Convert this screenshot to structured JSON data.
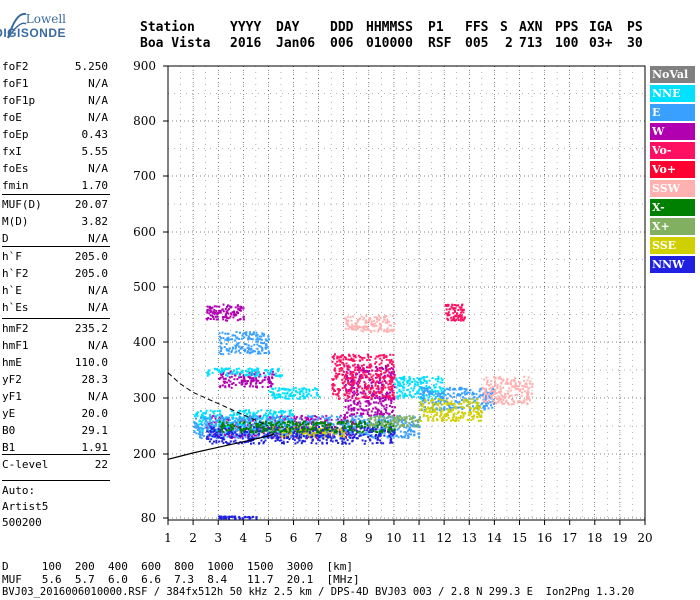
{
  "logo": {
    "line1": "Lowell",
    "line2": "DIGISONDE"
  },
  "header": {
    "row1": [
      "Station",
      "YYYY",
      "DAY",
      "DDD",
      "HHMMSS",
      "P1",
      "FFS",
      "S",
      "AXN",
      "PPS",
      "IGA",
      "PS"
    ],
    "row2": [
      "Boa Vista",
      "2016",
      "Jan06",
      "006",
      "010000",
      "RSF",
      "005",
      "2",
      "713",
      "100",
      "03+",
      "30"
    ]
  },
  "params": [
    {
      "label": "foF2",
      "value": "5.250"
    },
    {
      "label": "foF1",
      "value": "N/A"
    },
    {
      "label": "foF1p",
      "value": "N/A"
    },
    {
      "label": "foE",
      "value": "N/A"
    },
    {
      "label": "foEp",
      "value": "0.43"
    },
    {
      "label": "fxI",
      "value": "5.55"
    },
    {
      "label": "foEs",
      "value": "N/A"
    },
    {
      "label": "fmin",
      "value": "1.70"
    },
    {
      "label": "MUF(D)",
      "value": "20.07"
    },
    {
      "label": "M(D)",
      "value": "3.82"
    },
    {
      "label": "D",
      "value": "N/A"
    },
    {
      "label": "h`F",
      "value": "205.0"
    },
    {
      "label": "h`F2",
      "value": "205.0"
    },
    {
      "label": "h`E",
      "value": "N/A"
    },
    {
      "label": "h`Es",
      "value": "N/A"
    },
    {
      "label": "hmF2",
      "value": "235.2"
    },
    {
      "label": "hmF1",
      "value": "N/A"
    },
    {
      "label": "hmE",
      "value": "110.0"
    },
    {
      "label": "yF2",
      "value": "28.3"
    },
    {
      "label": "yF1",
      "value": "N/A"
    },
    {
      "label": "yE",
      "value": "20.0"
    },
    {
      "label": "B0",
      "value": "29.1"
    },
    {
      "label": "B1",
      "value": "1.91"
    },
    {
      "label": "C-level",
      "value": "22"
    }
  ],
  "auto": {
    "line1": "Auto:",
    "line2": "Artist5",
    "line3": "500200"
  },
  "legend": [
    {
      "label": "NoVal",
      "color": "#808080"
    },
    {
      "label": "NNE",
      "color": "#00e0ff"
    },
    {
      "label": "E",
      "color": "#3aa0ff"
    },
    {
      "label": "W",
      "color": "#b000b0"
    },
    {
      "label": "Vo-",
      "color": "#ff1060"
    },
    {
      "label": "Vo+",
      "color": "#ff0030"
    },
    {
      "label": "SSW",
      "color": "#ffb0b0"
    },
    {
      "label": "X-",
      "color": "#008000"
    },
    {
      "label": "X+",
      "color": "#80b060"
    },
    {
      "label": "SSE",
      "color": "#d0d000"
    },
    {
      "label": "NNW",
      "color": "#2020e0"
    }
  ],
  "chart_data": {
    "type": "scatter",
    "title": "",
    "xlabel": "",
    "ylabel": "",
    "xlim": [
      1,
      20
    ],
    "ylim": [
      80,
      900
    ],
    "x_ticks": [
      1,
      2,
      3,
      4,
      5,
      6,
      7,
      8,
      9,
      10,
      11,
      12,
      13,
      14,
      15,
      16,
      17,
      18,
      19,
      20
    ],
    "y_ticks": [
      80,
      200,
      300,
      400,
      500,
      600,
      700,
      800,
      900
    ],
    "grid": true,
    "profile_curve": {
      "note_free": true,
      "x": [
        1.0,
        1.5,
        2.0,
        3.0,
        4.0,
        5.0,
        5.25
      ],
      "y": [
        190,
        196,
        202,
        212,
        222,
        232,
        236
      ]
    },
    "upper_curve": {
      "x": [
        1.0,
        1.5,
        2.0,
        3.0,
        4.0,
        5.0
      ],
      "y": [
        345,
        325,
        310,
        290,
        270,
        250
      ]
    },
    "series": [
      {
        "name": "W",
        "color": "#b000b0",
        "clusters": [
          [
            2.5,
            8.5,
            230,
            270
          ],
          [
            3,
            5.2,
            320,
            350
          ],
          [
            8,
            10,
            270,
            360
          ],
          [
            2.5,
            4,
            440,
            470
          ]
        ]
      },
      {
        "name": "NNE",
        "color": "#00e0ff",
        "clusters": [
          [
            2,
            6,
            240,
            280
          ],
          [
            2.5,
            5.5,
            340,
            355
          ],
          [
            10,
            12,
            300,
            340
          ],
          [
            5,
            7,
            300,
            320
          ]
        ]
      },
      {
        "name": "E",
        "color": "#3aa0ff",
        "clusters": [
          [
            2,
            11,
            230,
            270
          ],
          [
            11,
            14,
            280,
            320
          ],
          [
            3,
            5,
            380,
            420
          ]
        ]
      },
      {
        "name": "Vo-",
        "color": "#ff1060",
        "clusters": [
          [
            7.5,
            10,
            300,
            380
          ],
          [
            12,
            12.8,
            440,
            470
          ]
        ]
      },
      {
        "name": "SSW",
        "color": "#ffb0b0",
        "clusters": [
          [
            13.5,
            15.5,
            290,
            340
          ],
          [
            8,
            10,
            420,
            450
          ]
        ]
      },
      {
        "name": "SSE",
        "color": "#d0d000",
        "clusters": [
          [
            11,
            13.5,
            260,
            300
          ],
          [
            5,
            8,
            230,
            250
          ]
        ]
      },
      {
        "name": "NNW",
        "color": "#2020e0",
        "clusters": [
          [
            2.5,
            10,
            220,
            250
          ],
          [
            3,
            4.5,
            80,
            85
          ]
        ]
      },
      {
        "name": "X-",
        "color": "#008000",
        "clusters": [
          [
            3,
            10,
            240,
            260
          ]
        ]
      },
      {
        "name": "X+",
        "color": "#80b060",
        "clusters": [
          [
            9,
            11,
            250,
            270
          ]
        ]
      }
    ]
  },
  "bottom": {
    "line1": "D     100  200  400  600  800  1000  1500  3000  [km]",
    "line2": "MUF   5.6  5.7  6.0  6.6  7.3  8.4   11.7  20.1  [MHz]",
    "line3": "BVJ03_2016006010000.RSF / 384fx512h 50 kHz 2.5 km / DPS-4D BVJ03 003 / 2.8 N 299.3 E  Ion2Png 1.3.20"
  }
}
